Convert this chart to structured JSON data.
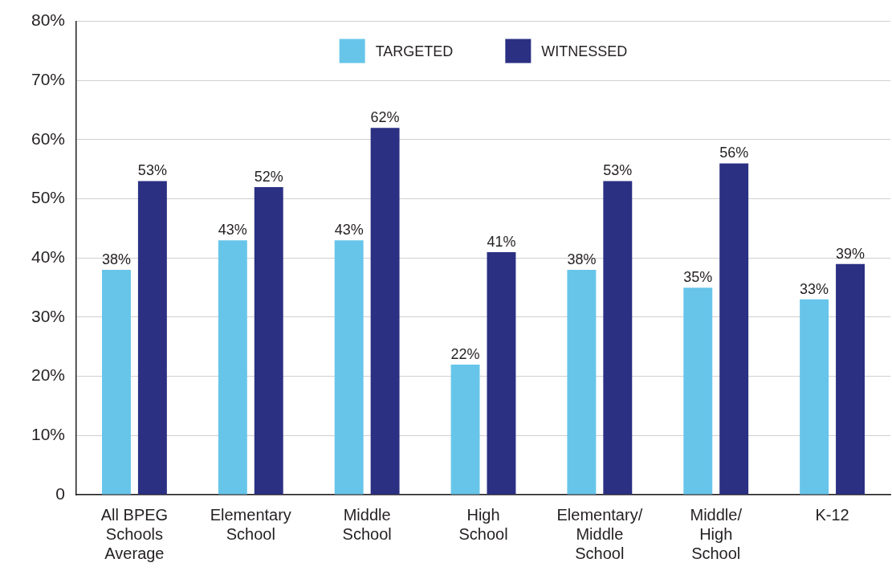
{
  "chart_data": {
    "type": "bar",
    "categories": [
      "All BPEG Schools Average",
      "Elementary School",
      "Middle School",
      "High School",
      "Elementary/Middle School",
      "Middle/High School",
      "K-12"
    ],
    "series": [
      {
        "name": "TARGETED",
        "color": "#67c5e9",
        "values": [
          38,
          43,
          43,
          22,
          38,
          35,
          33
        ],
        "value_labels": [
          "38%",
          "43%",
          "43%",
          "22%",
          "38%",
          "35%",
          "33%"
        ]
      },
      {
        "name": "WITNESSED",
        "color": "#2b3083",
        "values": [
          53,
          52,
          62,
          41,
          53,
          56,
          39
        ],
        "value_labels": [
          "53%",
          "52%",
          "62%",
          "41%",
          "53%",
          "56%",
          "39%"
        ]
      }
    ],
    "ylim": [
      0,
      80
    ],
    "yticks": [
      {
        "value": 0,
        "label": "0"
      },
      {
        "value": 10,
        "label": "10%"
      },
      {
        "value": 20,
        "label": "20%"
      },
      {
        "value": 30,
        "label": "30%"
      },
      {
        "value": 40,
        "label": "40%"
      },
      {
        "value": 50,
        "label": "50%"
      },
      {
        "value": 60,
        "label": "60%"
      },
      {
        "value": 70,
        "label": "70%"
      },
      {
        "value": 80,
        "label": "80%"
      }
    ],
    "grid": "y",
    "legend": "top"
  }
}
